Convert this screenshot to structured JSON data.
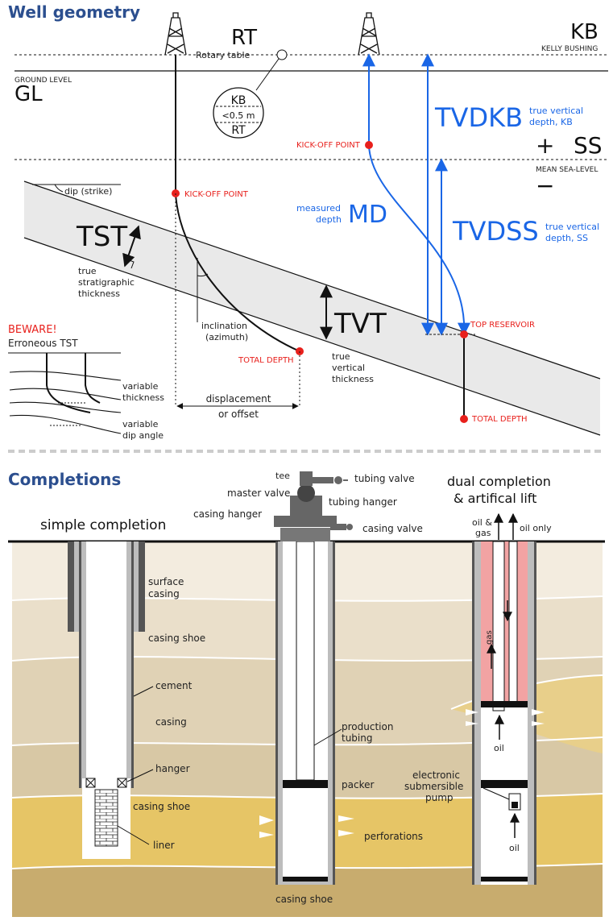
{
  "titles": {
    "geometry": "Well geometry",
    "completions": "Completions"
  },
  "geometry": {
    "rt": "RT",
    "rotary_table": "Rotary table",
    "kb": "KB",
    "kelly_bushing": "KELLY BUSHING",
    "ground_level": "GROUND LEVEL",
    "gl": "GL",
    "inset_kb": "KB",
    "inset_note": "<0.5 m",
    "inset_rt": "RT",
    "tvdkb": "TVDKB",
    "tvdkb_desc_1": "true vertical",
    "tvdkb_desc_2": "depth, KB",
    "plus": "+",
    "ss": "SS",
    "minus": "−",
    "mean_sea_level": "MEAN SEA-LEVEL",
    "kick_off_left": "KICK-OFF POINT",
    "kick_off_right": "KICK-OFF POINT",
    "dip": "dip (strike)",
    "tst": "TST",
    "tst_desc_1": "true",
    "tst_desc_2": "stratigraphic",
    "tst_desc_3": "thickness",
    "md_desc_1": "measured",
    "md_desc_2": "depth",
    "md": "MD",
    "tvdss": "TVDSS",
    "tvdss_desc_1": "true vertical",
    "tvdss_desc_2": "depth, SS",
    "inclination_1": "inclination",
    "inclination_2": "(azimuth)",
    "tvt": "TVT",
    "top_reservoir": "TOP RESERVOIR",
    "beware": "BEWARE!",
    "erroneous_tst": "Erroneous TST",
    "total_depth_left": "TOTAL DEPTH",
    "true_vt_1": "true",
    "true_vt_2": "vertical",
    "true_vt_3": "thickness",
    "variable_thickness_1": "variable",
    "variable_thickness_2": "thickness",
    "variable_dip_1": "variable",
    "variable_dip_2": "dip angle",
    "displacement_1": "displacement",
    "displacement_2": "or offset",
    "total_depth_right": "TOTAL DEPTH"
  },
  "completions": {
    "simple": "simple completion",
    "tee": "tee",
    "master_valve": "master valve",
    "casing_hanger": "casing hanger",
    "tubing_valve": "tubing valve",
    "tubing_hanger": "tubing hanger",
    "casing_valve": "casing valve",
    "dual_1": "dual completion",
    "dual_2": "& artifical lift",
    "oil_gas_1": "oil &",
    "oil_gas_2": "gas",
    "oil_only": "oil only",
    "surface_casing_1": "surface",
    "surface_casing_2": "casing",
    "casing_shoe_1": "casing shoe",
    "cement": "cement",
    "casing": "casing",
    "hanger": "hanger",
    "casing_shoe_2": "casing shoe",
    "liner": "liner",
    "production_tubing_1": "production",
    "production_tubing_2": "tubing",
    "packer": "packer",
    "perforations": "perforations",
    "casing_shoe_3": "casing shoe",
    "gas": "gas",
    "oil_mid": "oil",
    "esp_1": "electronic",
    "esp_2": "submersible",
    "esp_3": "pump",
    "oil_bottom": "oil"
  },
  "colors": {
    "section_title": "#2c4f8f",
    "blue_annotation": "#1a66e6",
    "red_annotation": "#e8201c",
    "formation_fill": "#e9e9e9",
    "tubing_pink": "#f2a3a3",
    "strata_light": "#f3ecdf",
    "strata_tan": "#d8c8a5",
    "strata_yellow": "#e6c566",
    "strata_bottom": "#c8ac6e"
  }
}
